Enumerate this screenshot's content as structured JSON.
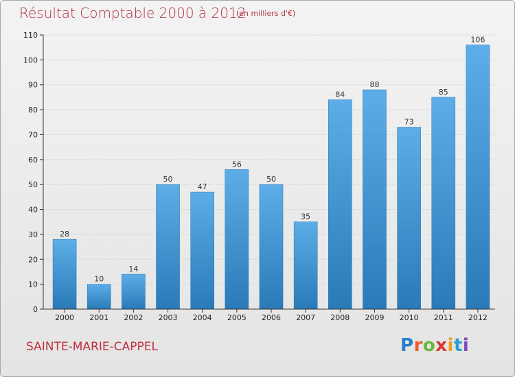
{
  "header": {
    "title": "Résultat Comptable 2000 à 2012",
    "subtitle": "(en milliers d'€)"
  },
  "footer": {
    "commune": "SAINTE-MARIE-CAPPEL",
    "logo_letters": [
      "P",
      "r",
      "o",
      "x",
      "i",
      "t",
      "i"
    ],
    "logo_colors": [
      "#2a7fc8",
      "#e85d2a",
      "#6ab83c",
      "#d8382f",
      "#f0a020",
      "#2a9fd0",
      "#7b4ab8"
    ]
  },
  "colors": {
    "bar_light": "#5dade8",
    "bar_dark": "#2a7ab8",
    "title": "#b03040"
  },
  "chart_data": {
    "type": "bar",
    "title": "Résultat Comptable 2000 à 2012",
    "xlabel": "",
    "ylabel": "",
    "categories": [
      "2000",
      "2001",
      "2002",
      "2003",
      "2004",
      "2005",
      "2006",
      "2007",
      "2008",
      "2009",
      "2010",
      "2011",
      "2012"
    ],
    "values": [
      28,
      10,
      14,
      50,
      47,
      56,
      50,
      35,
      84,
      88,
      73,
      85,
      106
    ],
    "ylim": [
      0,
      110
    ],
    "yticks": [
      0,
      10,
      20,
      30,
      40,
      50,
      60,
      70,
      80,
      90,
      100,
      110
    ],
    "grid": true
  }
}
